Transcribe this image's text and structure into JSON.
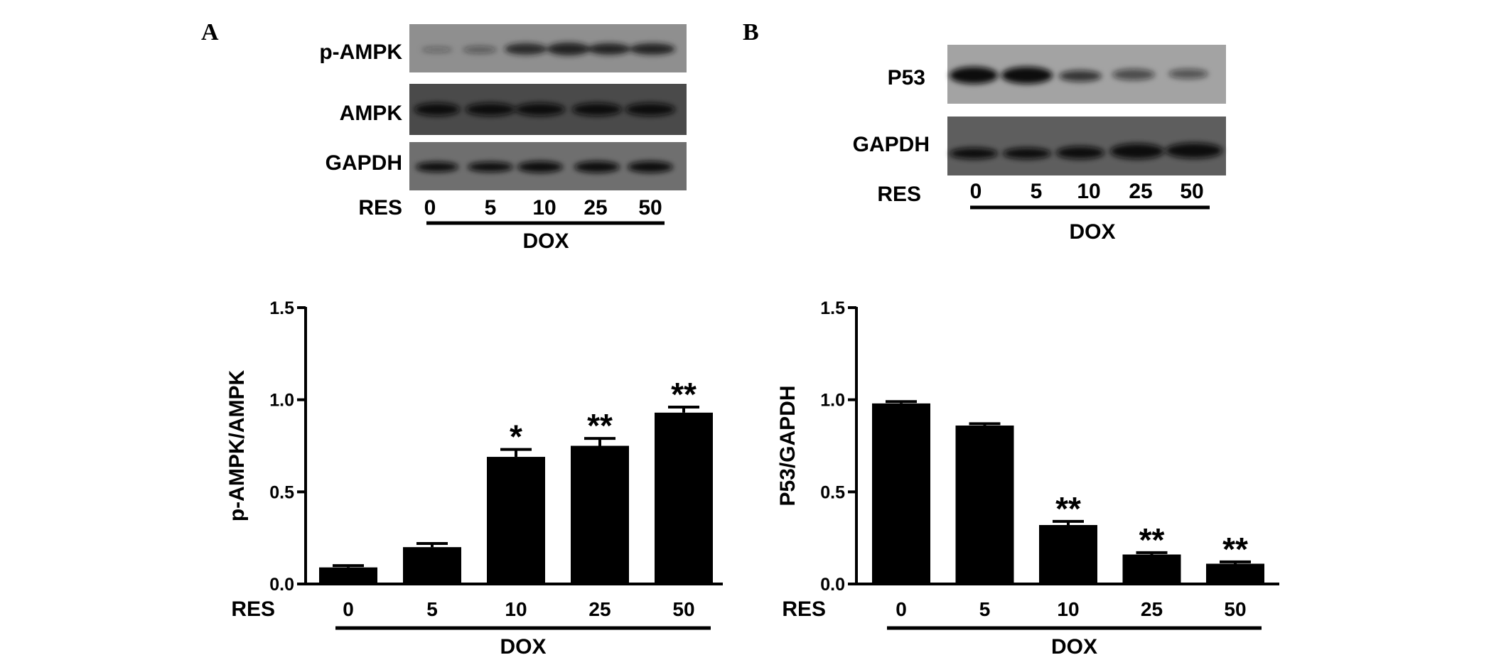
{
  "panels": {
    "a": {
      "letter": "A",
      "blot": {
        "rows": [
          "p-AMPK",
          "AMPK",
          "GAPDH"
        ],
        "res_label": "RES",
        "doses": [
          "0",
          "5",
          "10",
          "25",
          "50"
        ],
        "group_label": "DOX"
      }
    },
    "b": {
      "letter": "B",
      "blot": {
        "rows": [
          "P53",
          "GAPDH"
        ],
        "res_label": "RES",
        "doses": [
          "0",
          "5",
          "10",
          "25",
          "50"
        ],
        "group_label": "DOX"
      }
    }
  },
  "chart_data": [
    {
      "type": "bar",
      "panel": "A",
      "categories": [
        "0",
        "5",
        "10",
        "25",
        "50"
      ],
      "values": [
        0.09,
        0.2,
        0.69,
        0.75,
        0.93
      ],
      "errors": [
        0.01,
        0.02,
        0.04,
        0.04,
        0.03
      ],
      "significance": [
        "",
        "",
        "*",
        "**",
        "**"
      ],
      "ylabel": "p-AMPK/AMPK",
      "ylim": [
        0,
        1.5
      ],
      "yticks": [
        "0.0",
        "0.5",
        "1.0",
        "1.5"
      ],
      "x_prefix": "RES",
      "group_label": "DOX",
      "bar_color": "#000000"
    },
    {
      "type": "bar",
      "panel": "B",
      "categories": [
        "0",
        "5",
        "10",
        "25",
        "50"
      ],
      "values": [
        0.98,
        0.86,
        0.32,
        0.16,
        0.11
      ],
      "errors": [
        0.01,
        0.01,
        0.02,
        0.01,
        0.01
      ],
      "significance": [
        "",
        "",
        "**",
        "**",
        "**"
      ],
      "ylabel": "P53/GAPDH",
      "ylim": [
        0,
        1.5
      ],
      "yticks": [
        "0.0",
        "0.5",
        "1.0",
        "1.5"
      ],
      "x_prefix": "RES",
      "group_label": "DOX",
      "bar_color": "#000000"
    }
  ]
}
